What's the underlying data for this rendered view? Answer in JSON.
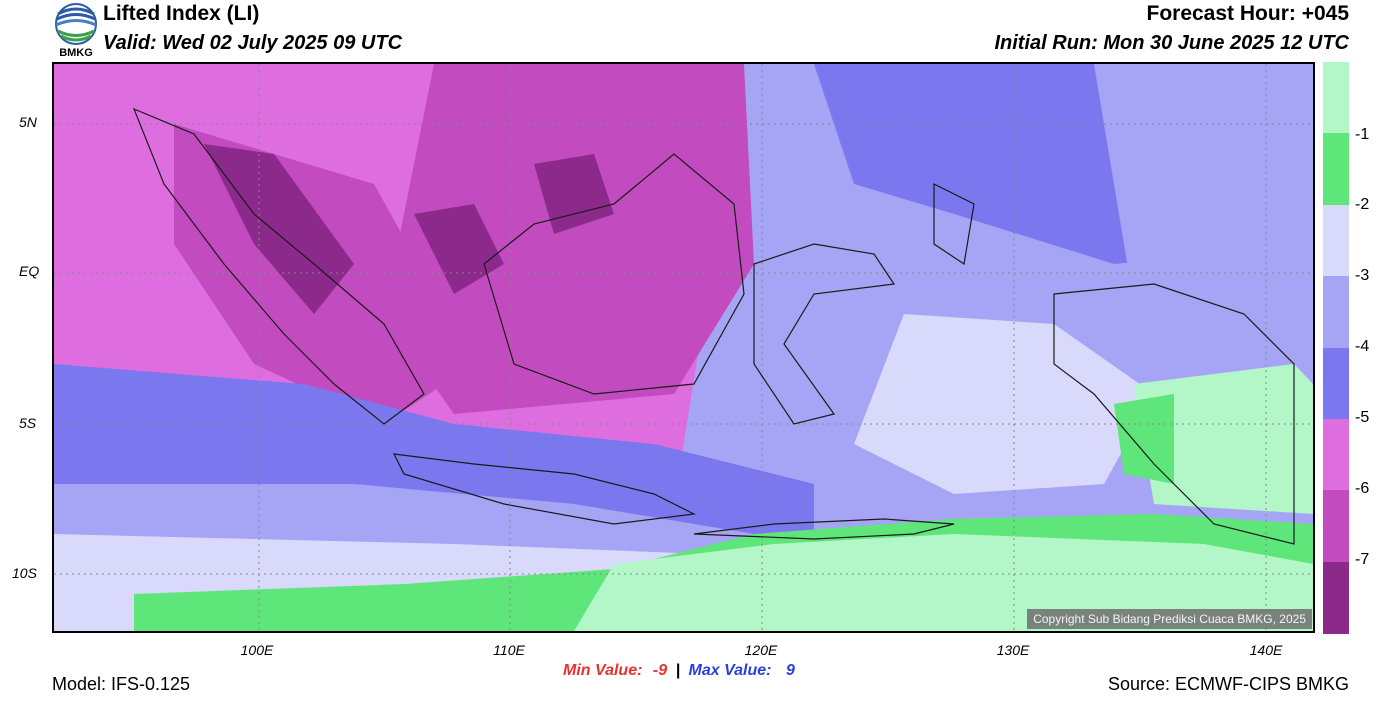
{
  "header": {
    "logo_text": "BMKG",
    "title": "Lifted Index (LI)",
    "valid": "Valid: Wed 02 July 2025 09 UTC",
    "forecast_hour": "Forecast Hour: +045",
    "initial_run": "Initial Run: Mon 30 June 2025 12 UTC"
  },
  "map": {
    "lat_ticks": [
      "5N",
      "EQ",
      "5S",
      "10S"
    ],
    "lon_ticks": [
      "100E",
      "110E",
      "120E",
      "130E",
      "140E"
    ],
    "colors": {
      "lt_-7": "#8c2a8c",
      "-7_-6": "#c24cbf",
      "-6_-5": "#de6ee0",
      "-5_-4": "#7b78ef",
      "-4_-3": "#a6a5f5",
      "-3_-2": "#d9d9fb",
      "-2_-1": "#5fe67a",
      "gt_-1": "#b3f7c9"
    },
    "copyright": "Copyright Sub Bidang Prediksi Cuaca BMKG, 2025"
  },
  "legend": {
    "labels": [
      "-1",
      "-2",
      "-3",
      "-4",
      "-5",
      "-6",
      "-7"
    ],
    "colors": [
      "#b3f7c9",
      "#5fe67a",
      "#d9d9fb",
      "#a6a5f5",
      "#7b78ef",
      "#de6ee0",
      "#c24cbf",
      "#8c2a8c"
    ]
  },
  "footer": {
    "model": "Model: IFS-0.125",
    "min_label": "Min Value:",
    "min_value": "-9",
    "separator": "|",
    "max_label": "Max Value:",
    "max_value": "9",
    "source": "Source: ECMWF-CIPS BMKG"
  }
}
